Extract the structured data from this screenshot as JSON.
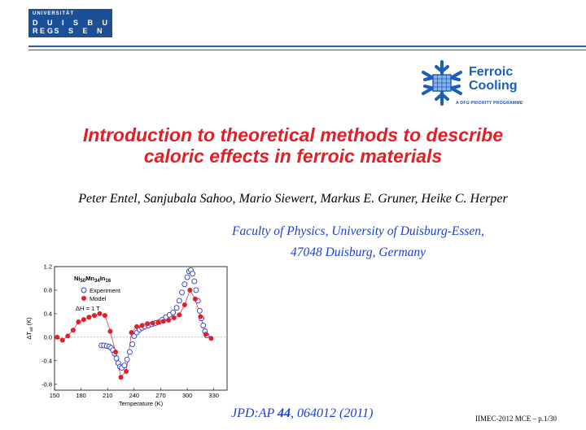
{
  "header": {
    "uni_logo": {
      "line1": "UNIVERSITÄT",
      "line2": "D U I S B U R G",
      "line3": "E S S E N"
    },
    "ferroic_logo": {
      "name_line1": "Ferroic",
      "name_line2": "Cooling",
      "subtitle": "A DFG PRIORITY PROGRAMME",
      "icon": "snowflake-icon"
    },
    "accent_color": "#1d5eb6"
  },
  "title": {
    "line1": "Introduction to theoretical methods to describe",
    "line2": "caloric effects in ferroic materials",
    "color": "#e31e25"
  },
  "authors": "Peter Entel, Sanjubala Sahoo, Mario Siewert, Markus E. Gruner, Heike C. Herper",
  "affiliation": {
    "line1": "Faculty of Physics, University of Duisburg-Essen,",
    "line2": "47048 Duisburg, Germany",
    "color": "#1d3fd0"
  },
  "reference": {
    "journal": "JPD:AP",
    "volume": "44",
    "rest": ", 064012 (2011)"
  },
  "footer": "IIMEC-2012 MCE – p.1/30",
  "chart_data": {
    "type": "scatter",
    "title": "Ni50Mn34In16",
    "xlabel": "Temperature (K)",
    "ylabel": "ΔT_ad (K)",
    "xlim": [
      150,
      345
    ],
    "ylim": [
      -0.9,
      1.2
    ],
    "xticks": [
      150,
      180,
      210,
      240,
      270,
      300,
      330
    ],
    "yticks": [
      1.2,
      0.8,
      0.4,
      0.0,
      -0.4,
      -0.8
    ],
    "ytick_labels": [
      "1.2",
      "0.8",
      "0.4",
      "0.0",
      "-0.4",
      "-0.8"
    ],
    "reference_line_y": 0,
    "annotation": "ΔH = 1 T",
    "legend_position": "top-left",
    "series": [
      {
        "name": "Experiment",
        "marker": "open-circle",
        "color": "#2b39c9",
        "x": [
          203,
          206,
          209,
          212,
          214,
          216,
          218,
          220,
          222,
          224,
          226,
          229,
          232,
          235,
          238,
          240,
          243,
          246,
          249,
          252,
          256,
          260,
          264,
          268,
          272,
          276,
          280,
          284,
          288,
          291,
          294,
          297,
          300,
          302,
          304,
          306,
          308,
          310,
          312,
          314,
          316,
          318,
          320,
          322
        ],
        "y": [
          -0.14,
          -0.14,
          -0.15,
          -0.16,
          -0.18,
          -0.22,
          -0.28,
          -0.36,
          -0.44,
          -0.5,
          -0.52,
          -0.48,
          -0.38,
          -0.25,
          -0.12,
          0.02,
          0.08,
          0.13,
          0.16,
          0.18,
          0.2,
          0.22,
          0.24,
          0.26,
          0.3,
          0.34,
          0.38,
          0.42,
          0.5,
          0.62,
          0.76,
          0.9,
          1.02,
          1.12,
          1.14,
          1.08,
          0.95,
          0.8,
          0.62,
          0.45,
          0.32,
          0.2,
          0.1,
          0.03
        ]
      },
      {
        "name": "Model",
        "marker": "filled-circle",
        "color": "#e31e25",
        "x": [
          153,
          159,
          165,
          171,
          177,
          183,
          189,
          195,
          201,
          207,
          213,
          219,
          225,
          231,
          237,
          243,
          249,
          255,
          261,
          267,
          273,
          279,
          285,
          291,
          297,
          303,
          309,
          315,
          321,
          327
        ],
        "y": [
          0.0,
          -0.05,
          0.02,
          0.12,
          0.26,
          0.3,
          0.34,
          0.37,
          0.4,
          0.37,
          0.1,
          -0.25,
          -0.68,
          -0.58,
          0.08,
          0.18,
          0.2,
          0.23,
          0.24,
          0.25,
          0.27,
          0.29,
          0.33,
          0.38,
          0.55,
          0.8,
          0.65,
          0.35,
          0.05,
          -0.02
        ]
      }
    ]
  }
}
